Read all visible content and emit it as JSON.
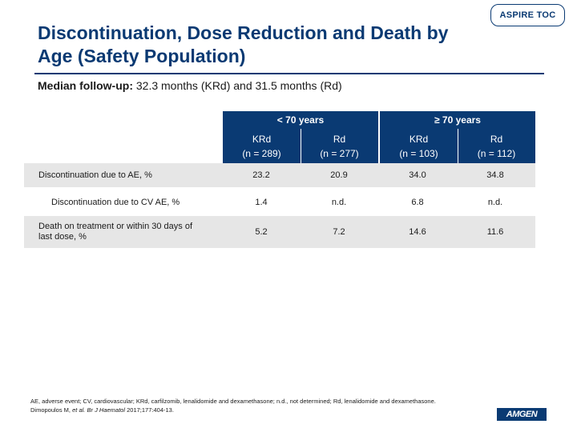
{
  "header": {
    "toc_button": "ASPIRE TOC",
    "title": "Discontinuation, Dose Reduction and Death by Age (Safety Population)"
  },
  "subtitle": {
    "label": "Median follow-up:",
    "text": "32.3 months (KRd) and 31.5 months (Rd)"
  },
  "table": {
    "groups": [
      "< 70 years",
      "≥ 70 years"
    ],
    "columns": [
      {
        "arm": "KRd",
        "n": "(n = 289)"
      },
      {
        "arm": "Rd",
        "n": "(n = 277)"
      },
      {
        "arm": "KRd",
        "n": "(n = 103)"
      },
      {
        "arm": "Rd",
        "n": "(n = 112)"
      }
    ],
    "rows": [
      {
        "label": "Discontinuation due to AE, %",
        "values": [
          "23.2",
          "20.9",
          "34.0",
          "34.8"
        ]
      },
      {
        "label": "Discontinuation due to CV AE, %",
        "values": [
          "1.4",
          "n.d.",
          "6.8",
          "n.d."
        ]
      },
      {
        "label": "Death on treatment or within 30 days of last dose, %",
        "values": [
          "5.2",
          "7.2",
          "14.6",
          "11.6"
        ]
      }
    ]
  },
  "footnote": {
    "abbreviations": "AE, adverse event; CV, cardiovascular; KRd, carfilzomib, lenalidomide and dexamethasone; n.d., not determined; Rd, lenalidomide and dexamethasone.",
    "citation_authors": "Dimopoulos M,",
    "citation_etal": "et al.",
    "citation_journal": "Br J Haematol",
    "citation_rest": "2017;177:404-13."
  },
  "logo": {
    "text": "AMGEN"
  },
  "colors": {
    "brand_navy": "#0a3a73",
    "band_gray": "#e6e6e6"
  }
}
